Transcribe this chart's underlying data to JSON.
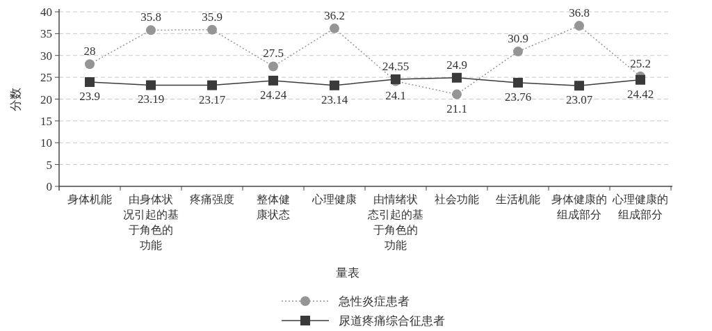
{
  "chart_data": {
    "type": "line",
    "ylabel": "分数",
    "legend_title": "量表",
    "legend": "bottom",
    "grid": "y",
    "data_labels": true,
    "categories": [
      "身体机能",
      "由身体状况引起的基于角色的功能",
      "疼痛强度",
      "整体健康状态",
      "心理健康",
      "由情绪状态引起的基于角色的功能",
      "社会功能",
      "生活机能",
      "身体健康的组成部分",
      "心理健康的组成部分"
    ],
    "ylim": [
      0,
      40
    ],
    "yticks": [
      0,
      5,
      10,
      15,
      20,
      25,
      30,
      35,
      40
    ],
    "series": [
      {
        "name": "急性炎症患者",
        "color": "#959595",
        "marker": "circle",
        "line_style": "dotted",
        "values": [
          28,
          35.8,
          35.9,
          27.5,
          36.2,
          24.1,
          21.1,
          30.9,
          36.8,
          25.2
        ]
      },
      {
        "name": "尿道疼痛综合征患者",
        "color": "#3a3a3a",
        "marker": "square",
        "line_style": "solid",
        "values": [
          23.9,
          23.19,
          23.17,
          24.24,
          23.14,
          24.55,
          24.9,
          23.76,
          23.07,
          24.42
        ]
      }
    ]
  }
}
